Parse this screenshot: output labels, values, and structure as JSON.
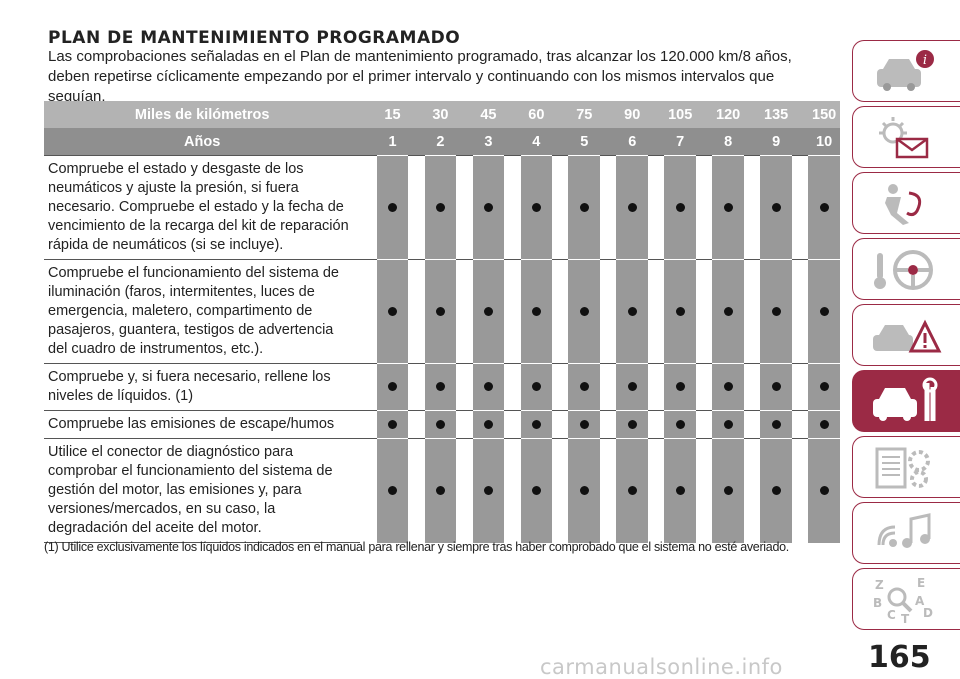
{
  "title": "PLAN DE MANTENIMIENTO PROGRAMADO",
  "intro": "Las comprobaciones señaladas en el Plan de mantenimiento programado, tras alcanzar los 120.000 km/8 años, deben repetirse cíclicamente empezando por el primer intervalo y continuando con los mismos intervalos que seguían.",
  "table": {
    "km_label": "Miles de kilómetros",
    "km": [
      "15",
      "30",
      "45",
      "60",
      "75",
      "90",
      "105",
      "120",
      "135",
      "150"
    ],
    "years_label": "Años",
    "years": [
      "1",
      "2",
      "3",
      "4",
      "5",
      "6",
      "7",
      "8",
      "9",
      "10"
    ],
    "rows": [
      {
        "text": "Compruebe el estado y desgaste de los neumáticos y ajuste la presión, si fuera necesario. Compruebe el estado y la fecha de vencimiento de la recarga del kit de reparación rápida de neumáticos (si se incluye).",
        "marks": [
          1,
          1,
          1,
          1,
          1,
          1,
          1,
          1,
          1,
          1
        ]
      },
      {
        "text": "Compruebe el funcionamiento del sistema de iluminación (faros, intermitentes, luces de emergencia, maletero, compartimento de pasajeros, guantera, testigos de advertencia del cuadro de instrumentos, etc.).",
        "marks": [
          1,
          1,
          1,
          1,
          1,
          1,
          1,
          1,
          1,
          1
        ]
      },
      {
        "text": "Compruebe y, si fuera necesario, rellene los niveles de líquidos. (1)",
        "marks": [
          1,
          1,
          1,
          1,
          1,
          1,
          1,
          1,
          1,
          1
        ]
      },
      {
        "text": "Compruebe las emisiones de escape/humos",
        "marks": [
          1,
          1,
          1,
          1,
          1,
          1,
          1,
          1,
          1,
          1
        ]
      },
      {
        "text": "Utilice el conector de diagnóstico para comprobar el funcionamiento del sistema de gestión del motor, las emisiones y, para versiones/mercados, en su caso, la degradación del aceite del motor.",
        "marks": [
          1,
          1,
          1,
          1,
          1,
          1,
          1,
          1,
          1,
          1
        ]
      }
    ]
  },
  "footnote": "(1) Utilice exclusivamente los líquidos indicados en el manual para rellenar y siempre tras haber comprobado que el sistema no esté averiado.",
  "page_number": "165",
  "watermark": "carmanualsonline.info",
  "side_tabs": [
    {
      "icon": "car-info-icon",
      "active": false
    },
    {
      "icon": "warning-lights-icon",
      "active": false
    },
    {
      "icon": "safety-airbag-icon",
      "active": false
    },
    {
      "icon": "steering-wheel-icon",
      "active": false
    },
    {
      "icon": "car-emergency-icon",
      "active": false
    },
    {
      "icon": "car-maintenance-icon",
      "active": true
    },
    {
      "icon": "technical-data-icon",
      "active": false
    },
    {
      "icon": "multimedia-icon",
      "active": false
    },
    {
      "icon": "index-icon",
      "active": false
    }
  ],
  "colors": {
    "accent": "#9b2a45",
    "header_light": "#b3b3b3",
    "header_dark": "#8f8f8f",
    "column_gray": "#999999"
  }
}
